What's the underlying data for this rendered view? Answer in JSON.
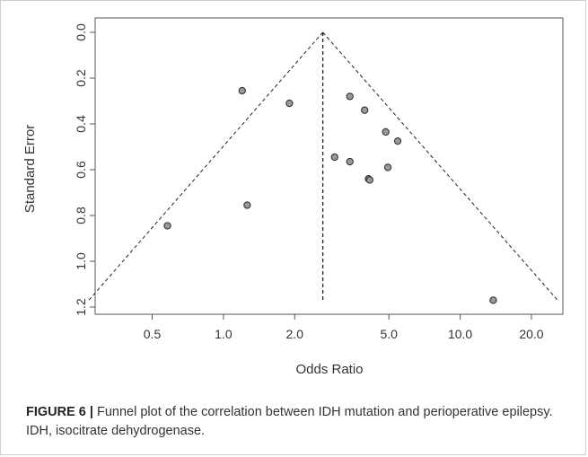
{
  "chart_data": {
    "type": "scatter",
    "xlabel": "Odds Ratio",
    "ylabel": "Standard Error",
    "x_scale": "log",
    "y_reversed": true,
    "x_range": [
      0.3,
      26
    ],
    "y_range": [
      0,
      1.2
    ],
    "x_ticks": [
      {
        "value": 0.5,
        "label": "0.5"
      },
      {
        "value": 1.0,
        "label": "1.0"
      },
      {
        "value": 2.0,
        "label": "2.0"
      },
      {
        "value": 5.0,
        "label": "5.0"
      },
      {
        "value": 10.0,
        "label": "10.0"
      },
      {
        "value": 20.0,
        "label": "20.0"
      }
    ],
    "y_ticks": [
      {
        "value": 0.0,
        "label": "0.0"
      },
      {
        "value": 0.2,
        "label": "0.2"
      },
      {
        "value": 0.4,
        "label": "0.4"
      },
      {
        "value": 0.6,
        "label": "0.6"
      },
      {
        "value": 0.8,
        "label": "0.8"
      },
      {
        "value": 1.0,
        "label": "1.0"
      },
      {
        "value": 1.2,
        "label": "1.2"
      }
    ],
    "pooled_estimate": 2.63,
    "funnel_bounds": {
      "se_max": 1.17,
      "or_left": 0.27,
      "or_right": 25.8
    },
    "points": [
      {
        "x": 0.58,
        "y": 0.845
      },
      {
        "x": 1.2,
        "y": 0.255
      },
      {
        "x": 1.26,
        "y": 0.755
      },
      {
        "x": 1.9,
        "y": 0.31
      },
      {
        "x": 2.95,
        "y": 0.545
      },
      {
        "x": 3.42,
        "y": 0.28
      },
      {
        "x": 3.42,
        "y": 0.565
      },
      {
        "x": 3.95,
        "y": 0.34
      },
      {
        "x": 4.1,
        "y": 0.64
      },
      {
        "x": 4.15,
        "y": 0.645
      },
      {
        "x": 4.85,
        "y": 0.435
      },
      {
        "x": 4.95,
        "y": 0.59
      },
      {
        "x": 5.45,
        "y": 0.475
      },
      {
        "x": 13.8,
        "y": 1.17
      }
    ],
    "colors": {
      "point_fill": "#9a9a9a",
      "point_stroke": "#333333",
      "axis": "#555555"
    }
  },
  "caption": {
    "label": "FIGURE 6 |",
    "text": " Funnel plot of the correlation between IDH mutation and perioperative epilepsy. IDH, isocitrate dehydrogenase."
  }
}
